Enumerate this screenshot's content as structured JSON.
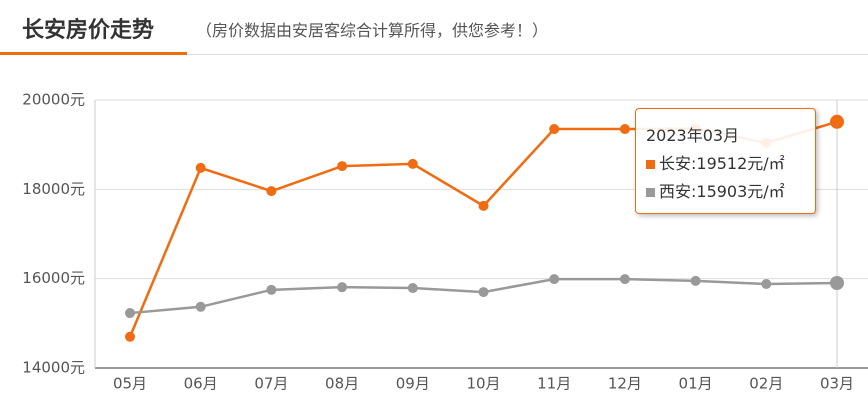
{
  "header": {
    "title": "长安房价走势",
    "subtitle": "（房价数据由安居客综合计算所得，供您参考！）"
  },
  "chart_data": {
    "type": "line",
    "categories": [
      "05月",
      "06月",
      "07月",
      "08月",
      "09月",
      "10月",
      "11月",
      "12月",
      "01月",
      "02月",
      "03月"
    ],
    "series": [
      {
        "name": "长安",
        "color": "#f06b12",
        "values": [
          14700,
          18480,
          17960,
          18520,
          18570,
          17630,
          19350,
          19350,
          19360,
          19040,
          19512
        ]
      },
      {
        "name": "西安",
        "color": "#999999",
        "values": [
          15230,
          15370,
          15750,
          15810,
          15790,
          15700,
          15990,
          15990,
          15950,
          15880,
          15903
        ]
      }
    ],
    "ylim": [
      14000,
      20000
    ],
    "yticks": [
      {
        "value": 14000,
        "label": "14000元"
      },
      {
        "value": 16000,
        "label": "16000元"
      },
      {
        "value": 18000,
        "label": "18000元"
      },
      {
        "value": 20000,
        "label": "20000元"
      }
    ],
    "grid": true,
    "highlight_index": 10,
    "tooltip": {
      "title": "2023年03月",
      "lines": [
        "长安:19512元/㎡",
        "西安:15903元/㎡"
      ]
    }
  }
}
